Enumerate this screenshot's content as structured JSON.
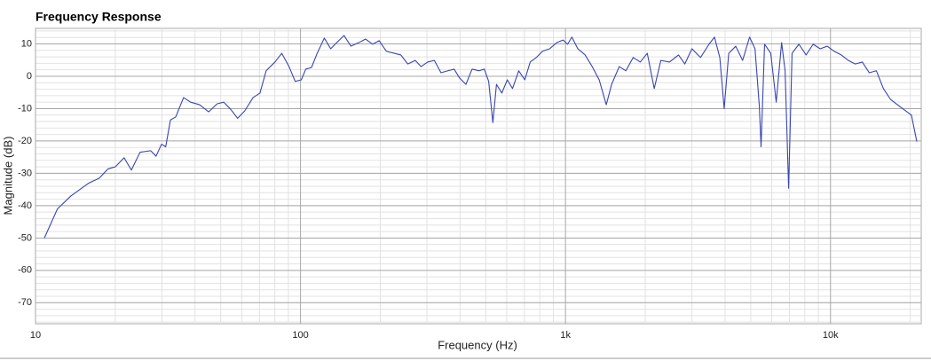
{
  "chart_data": {
    "type": "line",
    "title": "Frequency Response",
    "x_label": "Frequency (Hz)",
    "y_label": "Magnitude (dB)",
    "x_log": true,
    "grid": true,
    "xlim": [
      10,
      22000
    ],
    "ylim": [
      -76.5,
      14.8
    ],
    "xticks": [
      10,
      100,
      {
        "value": 1000,
        "label": "1k"
      },
      {
        "value": 10000,
        "label": "10k"
      }
    ],
    "yticks": [
      10,
      0,
      -10,
      -20,
      -30,
      -40,
      -50,
      -60,
      -70
    ],
    "x": [
      10.8,
      12.1,
      13.6,
      15.9,
      17.4,
      18.8,
      20,
      21.6,
      23,
      24.8,
      27.2,
      28.5,
      29.9,
      31,
      32.3,
      33.8,
      36.2,
      38.5,
      41.6,
      45,
      48.5,
      51.3,
      54.5,
      57.9,
      61.6,
      66.2,
      70.3,
      74.2,
      80.1,
      85,
      90.5,
      95.5,
      100.7,
      104.7,
      110,
      115.6,
      123,
      130,
      137,
      146,
      155,
      166,
      176,
      187,
      198,
      211,
      226,
      239,
      254,
      271,
      285,
      302,
      320,
      339,
      360,
      380,
      398,
      421,
      444,
      472,
      494,
      513,
      532,
      549,
      575,
      603,
      631,
      666,
      702,
      736,
      776,
      818,
      871,
      927,
      979,
      1018,
      1057,
      1113,
      1186,
      1261,
      1340,
      1425,
      1493,
      1595,
      1690,
      1800,
      1915,
      2035,
      2162,
      2290,
      2470,
      2670,
      2820,
      3000,
      3233,
      3480,
      3650,
      3822,
      3970,
      4130,
      4390,
      4660,
      4950,
      5190,
      5390,
      5470,
      5640,
      5950,
      6240,
      6540,
      6740,
      6950,
      7160,
      7600,
      8090,
      8600,
      9140,
      9720,
      10330,
      10980,
      11670,
      12400,
      13180,
      14000,
      14900,
      15830,
      16830,
      17890,
      19010,
      20200,
      21170
    ],
    "series": [
      {
        "color": "#3a45b0",
        "values": [
          -50,
          -41,
          -37,
          -33,
          -31.5,
          -28.6,
          -28,
          -25.2,
          -29,
          -23.5,
          -23,
          -24.7,
          -21,
          -21.8,
          -13.5,
          -12.6,
          -6.6,
          -8,
          -8.8,
          -11,
          -8.5,
          -8,
          -10.2,
          -13,
          -10.7,
          -6.6,
          -5.2,
          1.7,
          4.4,
          7.1,
          3,
          -1.6,
          -1.1,
          2.2,
          2.7,
          7.1,
          11.8,
          8.5,
          10.4,
          12.6,
          9.3,
          10.4,
          11.5,
          9.9,
          11,
          7.7,
          7.1,
          6.6,
          3.8,
          4.9,
          3,
          4.4,
          4.9,
          1.1,
          1.7,
          2.2,
          -0.5,
          -2.5,
          2.2,
          1.7,
          2.2,
          -1.6,
          -14.3,
          -2.5,
          -5.2,
          -1.1,
          -3.8,
          1.7,
          -1.1,
          4.4,
          5.8,
          7.7,
          8.5,
          10.4,
          11.2,
          9.9,
          12.1,
          8.5,
          6.6,
          3,
          -1.1,
          -8.8,
          -2.5,
          3,
          1.7,
          5.8,
          4.4,
          7.1,
          -3.8,
          4.9,
          4.4,
          6.6,
          3.8,
          8.5,
          5.8,
          9.9,
          12.1,
          5.8,
          -10,
          7.1,
          9.3,
          4.9,
          12.1,
          8.5,
          -9.4,
          -21.8,
          9.9,
          7.1,
          -8,
          10.4,
          1.7,
          -34.6,
          7.1,
          9.9,
          6.6,
          9.9,
          8.5,
          9.3,
          7.7,
          6.6,
          4.9,
          3.8,
          4.4,
          1.1,
          1.7,
          -3.8,
          -7.1,
          -8.8,
          -10.4,
          -12,
          -20.2
        ]
      }
    ]
  }
}
